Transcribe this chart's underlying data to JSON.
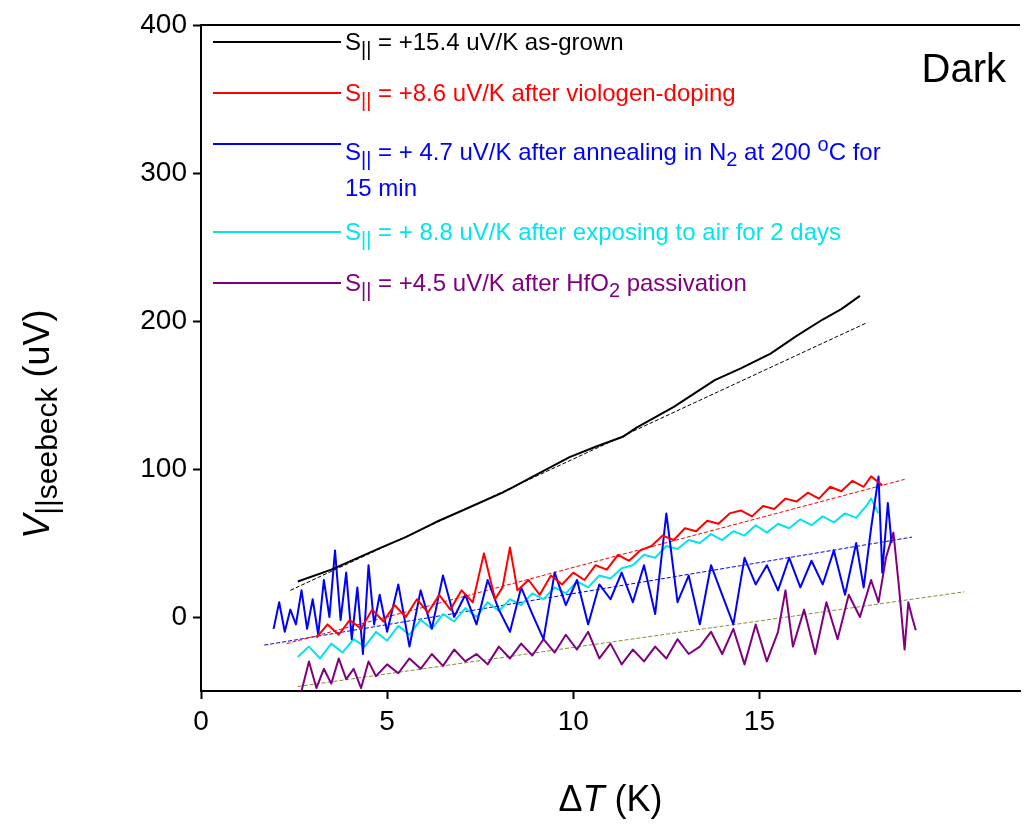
{
  "chart_data": {
    "type": "line",
    "xlabel": "ΔT (K)",
    "ylabel": "V$_{||seebeck}$ (uV)",
    "xlim": [
      0,
      22
    ],
    "xticks": [
      0,
      5,
      10,
      15
    ],
    "ylim": [
      -50,
      400
    ],
    "yticks": [
      0,
      100,
      200,
      300,
      400
    ],
    "grid": false,
    "legend": "top left",
    "marker": "none",
    "annotations": [
      "Dark"
    ],
    "series": [
      {
        "name": "S$_{||}$ = +15.4 uV/K as-grown",
        "color": "#000000",
        "x": [
          2.6,
          3.5,
          4.85,
          5.5,
          6.3,
          7.2,
          8.1,
          9.0,
          9.9,
          10.6,
          11.35,
          11.7,
          12.7,
          13.8,
          14.5,
          15.3,
          16.0,
          16.7,
          17.2,
          17.7
        ],
        "values": [
          24,
          32,
          47,
          54,
          64,
          74,
          84,
          96,
          108,
          115,
          122,
          128,
          142,
          160,
          168,
          178,
          190,
          201,
          208,
          217
        ]
      },
      {
        "name": "S$_{||}$ = +8.6 uV/K after viologen-doping",
        "color": "#ff0000",
        "x": [
          3.1,
          3.4,
          3.7,
          4.0,
          4.3,
          4.6,
          4.9,
          5.2,
          5.5,
          5.8,
          6.1,
          6.4,
          6.7,
          7.0,
          7.3,
          7.6,
          7.9,
          8.1,
          8.3,
          8.5,
          8.8,
          9.1,
          9.4,
          9.7,
          10.0,
          10.3,
          10.6,
          10.9,
          11.2,
          11.5,
          11.8,
          12.1,
          12.4,
          12.7,
          13.0,
          13.3,
          13.6,
          13.9,
          14.2,
          14.5,
          14.8,
          15.1,
          15.4,
          15.7,
          16.0,
          16.3,
          16.6,
          16.9,
          17.2,
          17.5,
          17.8,
          18.0,
          18.3
        ],
        "values": [
          -14,
          -5,
          -12,
          -2,
          -8,
          5,
          -3,
          8,
          0,
          12,
          3,
          15,
          5,
          18,
          10,
          43,
          12,
          20,
          47,
          18,
          25,
          15,
          28,
          22,
          30,
          25,
          35,
          32,
          42,
          38,
          45,
          48,
          55,
          52,
          60,
          58,
          65,
          63,
          70,
          72,
          68,
          75,
          73,
          80,
          78,
          84,
          80,
          88,
          85,
          92,
          88,
          95,
          89
        ]
      },
      {
        "name": "S$_{||}$ = + 4.7 uV/K after annealing in N$_{2}$ at 200 $^{o}$C for 15 min",
        "color": "#0000ff",
        "x": [
          1.95,
          2.1,
          2.25,
          2.4,
          2.55,
          2.7,
          2.85,
          3.0,
          3.15,
          3.3,
          3.45,
          3.6,
          3.75,
          3.9,
          4.05,
          4.2,
          4.35,
          4.5,
          4.65,
          4.8,
          5.0,
          5.3,
          5.6,
          5.9,
          6.2,
          6.5,
          6.8,
          7.1,
          7.4,
          7.7,
          8.0,
          8.3,
          8.6,
          8.9,
          9.2,
          9.5,
          9.8,
          10.1,
          10.4,
          10.7,
          11.0,
          11.3,
          11.6,
          11.9,
          12.2,
          12.5,
          12.8,
          13.1,
          13.4,
          13.7,
          14.0,
          14.3,
          14.6,
          14.9,
          15.2,
          15.5,
          15.8,
          16.1,
          16.4,
          16.7,
          17.0,
          17.3,
          17.6,
          17.8,
          18.0,
          18.2,
          18.3,
          18.45,
          18.55
        ],
        "values": [
          -8,
          10,
          -10,
          5,
          -5,
          18,
          -8,
          12,
          -12,
          25,
          0,
          45,
          -2,
          30,
          -15,
          20,
          -25,
          35,
          -5,
          15,
          -10,
          22,
          -20,
          18,
          -8,
          28,
          0,
          15,
          -5,
          25,
          5,
          -10,
          20,
          2,
          -15,
          30,
          8,
          25,
          -5,
          22,
          12,
          30,
          10,
          35,
          2,
          70,
          10,
          28,
          -5,
          35,
          15,
          -5,
          40,
          22,
          35,
          18,
          40,
          20,
          38,
          22,
          45,
          15,
          50,
          20,
          60,
          95,
          30,
          77,
          50
        ]
      },
      {
        "name": "S$_{||}$ = + 8.8 uV/K after exposing to air for 2 days",
        "color": "#00e5ee",
        "x": [
          2.6,
          2.9,
          3.2,
          3.5,
          3.8,
          4.1,
          4.4,
          4.7,
          5.0,
          5.3,
          5.6,
          5.9,
          6.2,
          6.5,
          6.8,
          7.1,
          7.4,
          7.7,
          8.0,
          8.3,
          8.6,
          8.9,
          9.2,
          9.5,
          9.8,
          10.1,
          10.4,
          10.7,
          11.0,
          11.3,
          11.6,
          11.9,
          12.2,
          12.5,
          12.8,
          13.1,
          13.4,
          13.7,
          14.0,
          14.3,
          14.6,
          14.9,
          15.2,
          15.5,
          15.8,
          16.1,
          16.4,
          16.7,
          17.0,
          17.3,
          17.6,
          17.9,
          18.0,
          18.2
        ],
        "values": [
          -27,
          -20,
          -28,
          -18,
          -24,
          -15,
          -20,
          -10,
          -16,
          -6,
          -12,
          -2,
          -8,
          2,
          -3,
          6,
          0,
          10,
          4,
          12,
          8,
          16,
          12,
          20,
          16,
          24,
          20,
          28,
          26,
          33,
          35,
          42,
          40,
          48,
          46,
          52,
          50,
          56,
          52,
          58,
          55,
          62,
          57,
          63,
          60,
          66,
          62,
          68,
          64,
          70,
          67,
          76,
          80,
          70
        ]
      },
      {
        "name": "S$_{||}$ = +4.5 uV/K after HfO$_{2}$ passivation",
        "color": "#800080",
        "x": [
          2.7,
          2.9,
          3.1,
          3.3,
          3.5,
          3.7,
          3.9,
          4.1,
          4.3,
          4.5,
          4.7,
          5.0,
          5.3,
          5.6,
          5.9,
          6.2,
          6.5,
          6.8,
          7.1,
          7.4,
          7.7,
          8.0,
          8.3,
          8.6,
          8.9,
          9.2,
          9.5,
          9.8,
          10.1,
          10.4,
          10.7,
          11.0,
          11.3,
          11.6,
          11.9,
          12.2,
          12.5,
          12.8,
          13.1,
          13.4,
          13.7,
          14.0,
          14.3,
          14.6,
          14.9,
          15.2,
          15.5,
          15.7,
          15.9,
          16.2,
          16.5,
          16.8,
          17.1,
          17.4,
          17.7,
          18.0,
          18.2,
          18.4,
          18.6,
          18.75,
          18.9,
          19.0,
          19.1,
          19.2
        ],
        "values": [
          -50,
          -30,
          -48,
          -35,
          -45,
          -28,
          -42,
          -35,
          -48,
          -30,
          -40,
          -32,
          -38,
          -28,
          -35,
          -25,
          -33,
          -22,
          -30,
          -25,
          -32,
          -20,
          -28,
          -18,
          -26,
          -15,
          -24,
          -12,
          -22,
          -10,
          -28,
          -18,
          -32,
          -22,
          -30,
          -20,
          -28,
          -15,
          -25,
          -20,
          -10,
          -25,
          -8,
          -32,
          -5,
          -30,
          -10,
          18,
          -20,
          5,
          -25,
          10,
          -15,
          15,
          0,
          25,
          10,
          40,
          57,
          20,
          -22,
          10,
          0,
          -9
        ]
      },
      {
        "type": "line",
        "color": "#000000",
        "line_style": "dashed",
        "x": [
          2.4,
          17.9
        ],
        "values": [
          18,
          199
        ]
      },
      {
        "type": "line",
        "color": "#ff0000",
        "line_style": "dashed",
        "x": [
          2.3,
          18.9
        ],
        "values": [
          -18,
          93
        ]
      },
      {
        "type": "line",
        "color": "#0000ff",
        "line_style": "dashed",
        "x": [
          1.7,
          19.1
        ],
        "values": [
          -19,
          54
        ]
      },
      {
        "type": "line",
        "color": "#8b8b3a",
        "line_style": "dashed",
        "x": [
          2.6,
          20.5
        ],
        "values": [
          -47,
          17
        ]
      }
    ]
  }
}
